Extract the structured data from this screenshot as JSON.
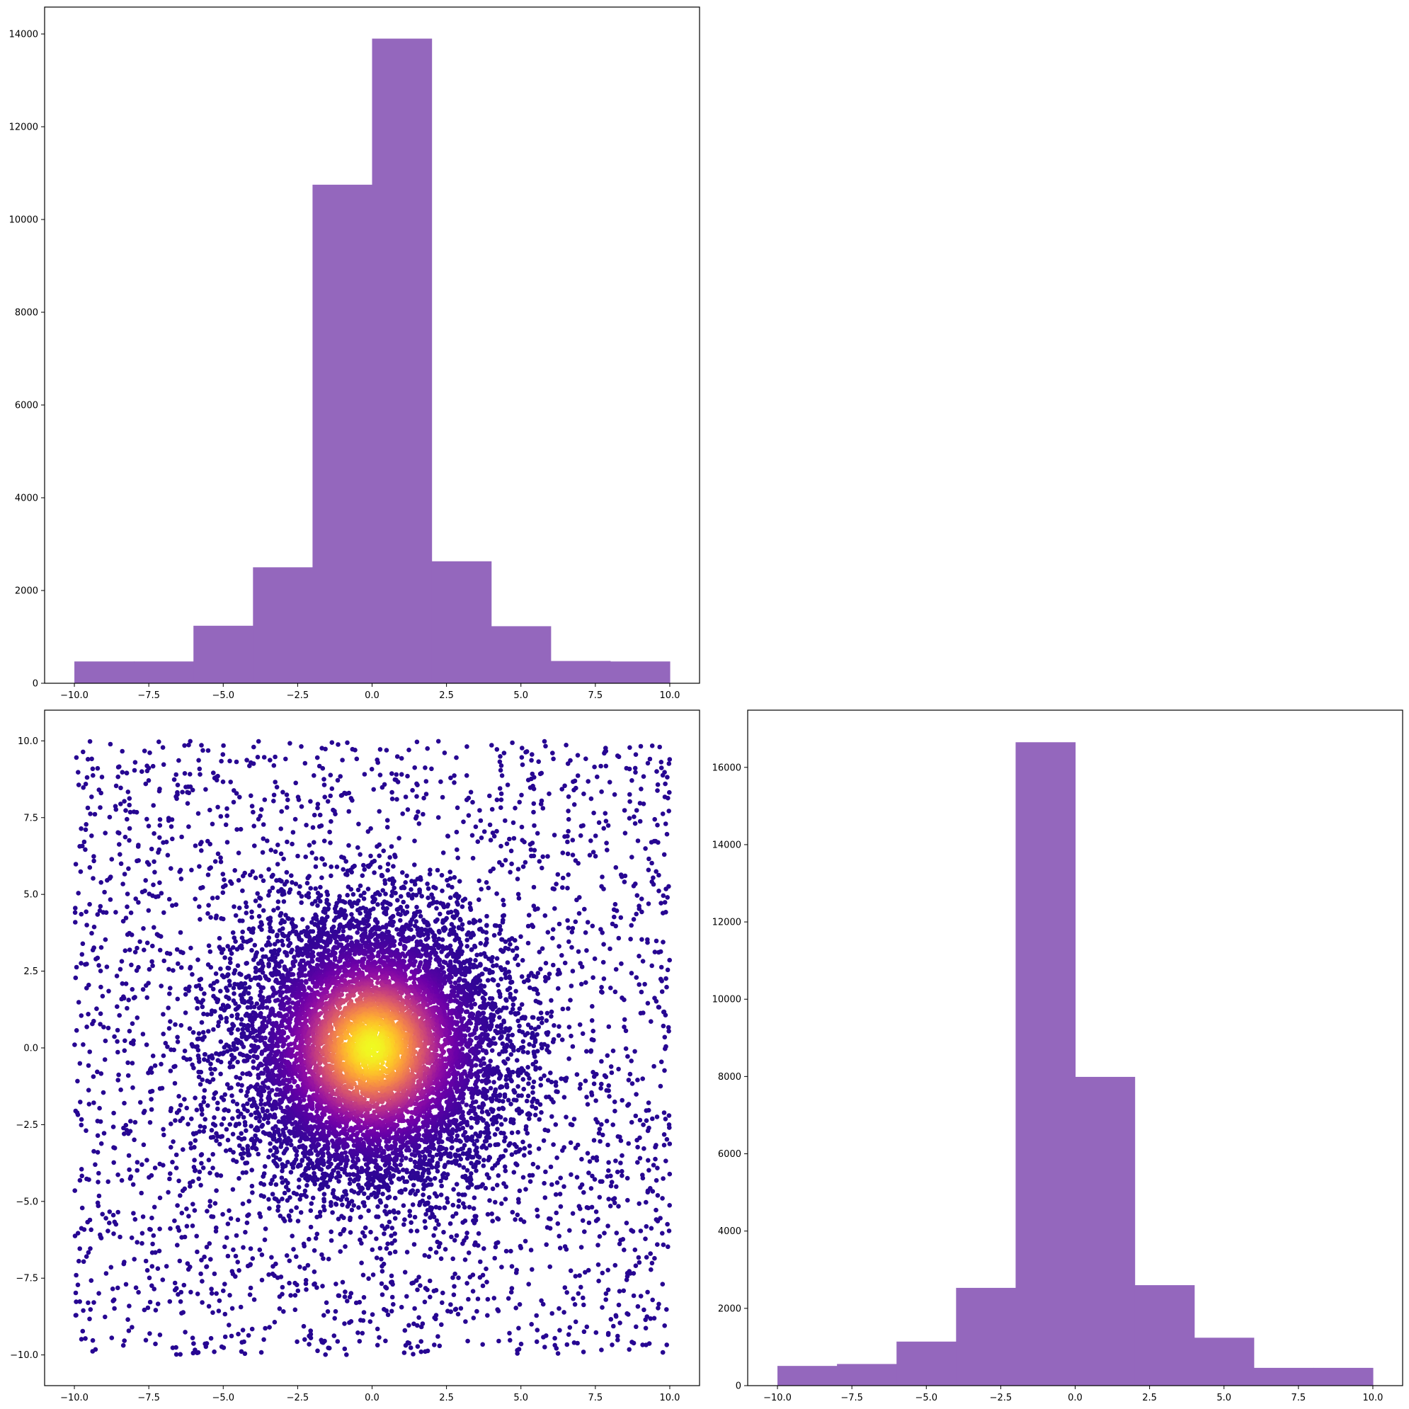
{
  "figure": {
    "background": "#ffffff"
  },
  "chart_data": [
    {
      "id": "top_hist",
      "type": "bar",
      "subtype": "histogram",
      "color": "#9467bd",
      "bin_edges": [
        -10,
        -8,
        -6,
        -4,
        -2,
        0,
        2,
        4,
        6,
        8,
        10
      ],
      "values": [
        470,
        470,
        1240,
        2500,
        10750,
        13900,
        2630,
        1230,
        480,
        470
      ],
      "xlim": [
        -11,
        11
      ],
      "ylim": [
        0,
        14580
      ],
      "xticks": [
        -10.0,
        -7.5,
        -5.0,
        -2.5,
        0.0,
        2.5,
        5.0,
        7.5,
        10.0
      ],
      "xtick_labels": [
        "−10.0",
        "−7.5",
        "−5.0",
        "−2.5",
        "0.0",
        "2.5",
        "5.0",
        "7.5",
        "10.0"
      ],
      "yticks": [
        0,
        2000,
        4000,
        6000,
        8000,
        10000,
        12000,
        14000
      ],
      "ytick_labels": [
        "0",
        "2000",
        "4000",
        "6000",
        "8000",
        "10000",
        "12000",
        "14000"
      ],
      "title": "",
      "xlabel": "",
      "ylabel": "",
      "grid": false
    },
    {
      "id": "scatter",
      "type": "scatter",
      "colormap": "plasma",
      "color_by": "radial density (bright at center)",
      "x_range": [
        -10,
        10
      ],
      "y_range": [
        -10,
        10
      ],
      "components": [
        {
          "name": "",
          "distribution": "uniform",
          "count": 3000,
          "x": [
            -10,
            10
          ],
          "y": [
            -10,
            10
          ]
        },
        {
          "name": "",
          "distribution": "normal-radial",
          "count": 8000,
          "sigma": 2.3,
          "r_max": 6.2
        }
      ],
      "xlim": [
        -11,
        11
      ],
      "ylim": [
        -11,
        11
      ],
      "xticks": [
        -10.0,
        -7.5,
        -5.0,
        -2.5,
        0.0,
        2.5,
        5.0,
        7.5,
        10.0
      ],
      "xtick_labels": [
        "−10.0",
        "−7.5",
        "−5.0",
        "−2.5",
        "0.0",
        "2.5",
        "5.0",
        "7.5",
        "10.0"
      ],
      "yticks": [
        -10.0,
        -7.5,
        -5.0,
        -2.5,
        0.0,
        2.5,
        5.0,
        7.5,
        10.0
      ],
      "ytick_labels": [
        "−10.0",
        "−7.5",
        "−5.0",
        "−2.5",
        "0.0",
        "2.5",
        "5.0",
        "7.5",
        "10.0"
      ],
      "title": "",
      "xlabel": "",
      "ylabel": "",
      "grid": false
    },
    {
      "id": "right_hist",
      "type": "bar",
      "subtype": "histogram",
      "color": "#9467bd",
      "bin_edges": [
        -10,
        -8,
        -6,
        -4,
        -2,
        0,
        2,
        4,
        6,
        8,
        10
      ],
      "values": [
        510,
        560,
        1140,
        2530,
        16650,
        7990,
        2600,
        1240,
        460,
        460
      ],
      "xlim": [
        -11,
        11
      ],
      "ylim": [
        0,
        17480
      ],
      "xticks": [
        -10.0,
        -7.5,
        -5.0,
        -2.5,
        0.0,
        2.5,
        5.0,
        7.5,
        10.0
      ],
      "xtick_labels": [
        "−10.0",
        "−7.5",
        "−5.0",
        "−2.5",
        "0.0",
        "2.5",
        "5.0",
        "7.5",
        "10.0"
      ],
      "yticks": [
        0,
        2000,
        4000,
        6000,
        8000,
        10000,
        12000,
        14000,
        16000
      ],
      "ytick_labels": [
        "0",
        "2000",
        "4000",
        "6000",
        "8000",
        "10000",
        "12000",
        "14000",
        "16000"
      ],
      "title": "",
      "xlabel": "",
      "ylabel": "",
      "grid": false
    }
  ]
}
